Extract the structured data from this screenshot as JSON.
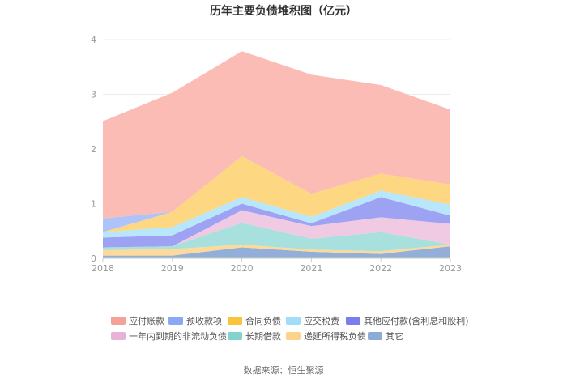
{
  "chart_data": {
    "type": "area",
    "stacked": true,
    "title": "历年主要负债堆积图（亿元）",
    "x": [
      "2018",
      "2019",
      "2020",
      "2021",
      "2022",
      "2023"
    ],
    "y_ticks": [
      "0",
      "1",
      "2",
      "3",
      "4"
    ],
    "ylim": [
      0,
      4
    ],
    "grid": true,
    "legend_position": "bottom",
    "source": "数据来源：恒生聚源",
    "series": [
      {
        "name": "其它",
        "color": "#92aed9",
        "values": [
          0.05,
          0.05,
          0.2,
          0.12,
          0.08,
          0.22
        ]
      },
      {
        "name": "递延所得税负债",
        "color": "#fdd99a",
        "values": [
          0.1,
          0.12,
          0.05,
          0.04,
          0.05,
          0.03
        ]
      },
      {
        "name": "长期借款",
        "color": "#a7e0dc",
        "values": [
          0.05,
          0.05,
          0.4,
          0.2,
          0.35,
          0.0
        ]
      },
      {
        "name": "一年内到期的非流动负债",
        "color": "#f0c9e3",
        "values": [
          0.0,
          0.0,
          0.23,
          0.23,
          0.27,
          0.38
        ]
      },
      {
        "name": "其他应付款(含利息和股利)",
        "color": "#9ea2f3",
        "values": [
          0.18,
          0.2,
          0.12,
          0.05,
          0.37,
          0.15
        ]
      },
      {
        "name": "应交税费",
        "color": "#b8e6fb",
        "values": [
          0.1,
          0.15,
          0.12,
          0.12,
          0.12,
          0.2
        ]
      },
      {
        "name": "合同负债",
        "color": "#fed782",
        "values": [
          0.0,
          0.28,
          0.75,
          0.42,
          0.31,
          0.37
        ]
      },
      {
        "name": "预收款项",
        "color": "#aec3f9",
        "values": [
          0.25,
          0.0,
          0.0,
          0.0,
          0.0,
          0.0
        ]
      },
      {
        "name": "应付账款",
        "color": "#fbbcb5",
        "values": [
          1.78,
          2.18,
          1.92,
          2.18,
          1.62,
          1.37
        ]
      }
    ]
  },
  "legend": [
    {
      "name": "应付账款",
      "color": "#f5a19a"
    },
    {
      "name": "预收款项",
      "color": "#8ba8f2"
    },
    {
      "name": "合同负债",
      "color": "#fbc33c"
    },
    {
      "name": "应交税费",
      "color": "#a2ddf8"
    },
    {
      "name": "其他应付款(含利息和股利)",
      "color": "#7b7ced"
    },
    {
      "name": "一年内到期的非流动负债",
      "color": "#e7b2d8"
    },
    {
      "name": "长期借款",
      "color": "#82d2ce"
    },
    {
      "name": "递延所得税负债",
      "color": "#fbd38c"
    },
    {
      "name": "其它",
      "color": "#8eaad6"
    }
  ]
}
